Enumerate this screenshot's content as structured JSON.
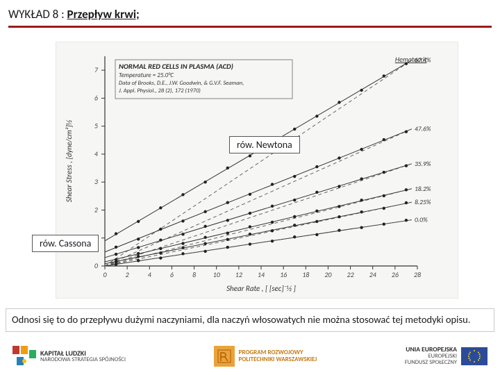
{
  "title": {
    "prefix": "WYKŁAD 8 : ",
    "main": "Przepływ krwi;"
  },
  "chart": {
    "header": "NORMAL RED CELLS IN PLASMA (ACD)",
    "subheader1": "Temperature = 25.0°C",
    "subheader2": "Data of Brooks, D.E., J.W. Goodwin, & G.V.F. Seaman,",
    "subheader3": "J. Appl. Physiol., 28 (2), 172 (1970)",
    "hematocrit_label": "Hematocrit",
    "hematocrit_pct": [
      "67.4%",
      "47.6%",
      "35.9%",
      "18.2%",
      "8.25%",
      "0.0%"
    ],
    "y_label": "Shear Stress , [dyne/cm²]½",
    "x_label": "Shear Rate , [ [sec]⁻½ ]",
    "x_ticks": [
      0,
      2,
      4,
      6,
      8,
      10,
      12,
      14,
      16,
      18,
      20,
      22,
      24,
      26,
      28
    ],
    "y_ticks": [
      0,
      1,
      2,
      3,
      4,
      5,
      6,
      7
    ],
    "colors": {
      "header_border": "#666666",
      "line": "#333333",
      "dash": "#555555",
      "bg": "#f6f6f4"
    },
    "series": [
      {
        "label": "67.4%",
        "y0": 0.9,
        "slope": 0.235
      },
      {
        "label": "47.6%",
        "y0": 0.5,
        "slope": 0.16
      },
      {
        "label": "35.9%",
        "y0": 0.3,
        "slope": 0.122
      },
      {
        "label": "18.2%",
        "y0": 0.15,
        "slope": 0.095
      },
      {
        "label": "8.25%",
        "y0": 0.08,
        "slope": 0.08
      },
      {
        "label": "0.0%",
        "y0": 0.0,
        "slope": 0.06
      }
    ]
  },
  "annotations": {
    "newton": "rów. Newtona",
    "casson": "rów. Cassona"
  },
  "caption": "Odnosi się to do przepływu dużymi naczyniami, dla naczyń włosowatych nie można stosować tej metodyki opisu.",
  "footer": {
    "left_big": "KAPITAŁ LUDZKI",
    "left_small": "NARODOWA STRATEGIA SPÓJNOŚCI",
    "center_l1": "PROGRAM ROZWOJOWY",
    "center_l2": "POLITECHNIKI WARSZAWSKIEJ",
    "right_big": "UNIA EUROPEJSKA",
    "right_small1": "EUROPEJSKI",
    "right_small2": "FUNDUSZ SPOŁECZNY"
  }
}
